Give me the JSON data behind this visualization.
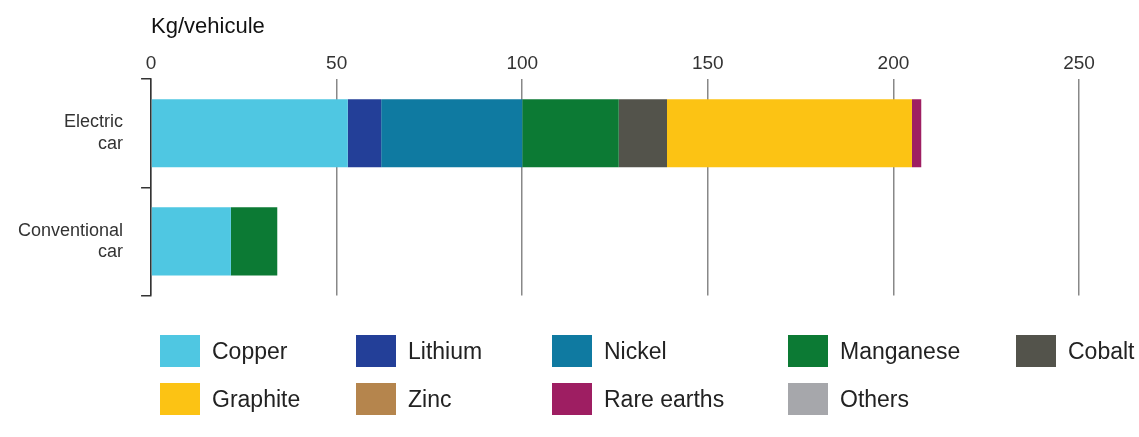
{
  "chart_data": {
    "type": "bar",
    "orientation": "horizontal",
    "stacked": true,
    "xlabel": "Kg/vehicule",
    "categories": [
      "Electric car",
      "Conventional car"
    ],
    "series": [
      {
        "name": "Copper",
        "color": "#4fc7e2",
        "values": [
          53,
          21.5
        ]
      },
      {
        "name": "Lithium",
        "color": "#233f98",
        "values": [
          9,
          0
        ]
      },
      {
        "name": "Nickel",
        "color": "#0f7aa1",
        "values": [
          38,
          0
        ]
      },
      {
        "name": "Manganese",
        "color": "#0c7a34",
        "values": [
          26,
          12.5
        ]
      },
      {
        "name": "Cobalt",
        "color": "#53534b",
        "values": [
          13,
          0
        ]
      },
      {
        "name": "Graphite",
        "color": "#fcc314",
        "values": [
          66,
          0
        ]
      },
      {
        "name": "Zinc",
        "color": "#b5854d",
        "values": [
          0,
          0
        ]
      },
      {
        "name": "Rare earths",
        "color": "#9e1e62",
        "values": [
          2.5,
          0
        ]
      },
      {
        "name": "Others",
        "color": "#a6a7ab",
        "values": [
          0,
          0
        ]
      }
    ],
    "xlim": [
      0,
      250
    ],
    "xticks": [
      0,
      50,
      100,
      150,
      200,
      250
    ],
    "grid": "x",
    "legend": "bottom"
  }
}
